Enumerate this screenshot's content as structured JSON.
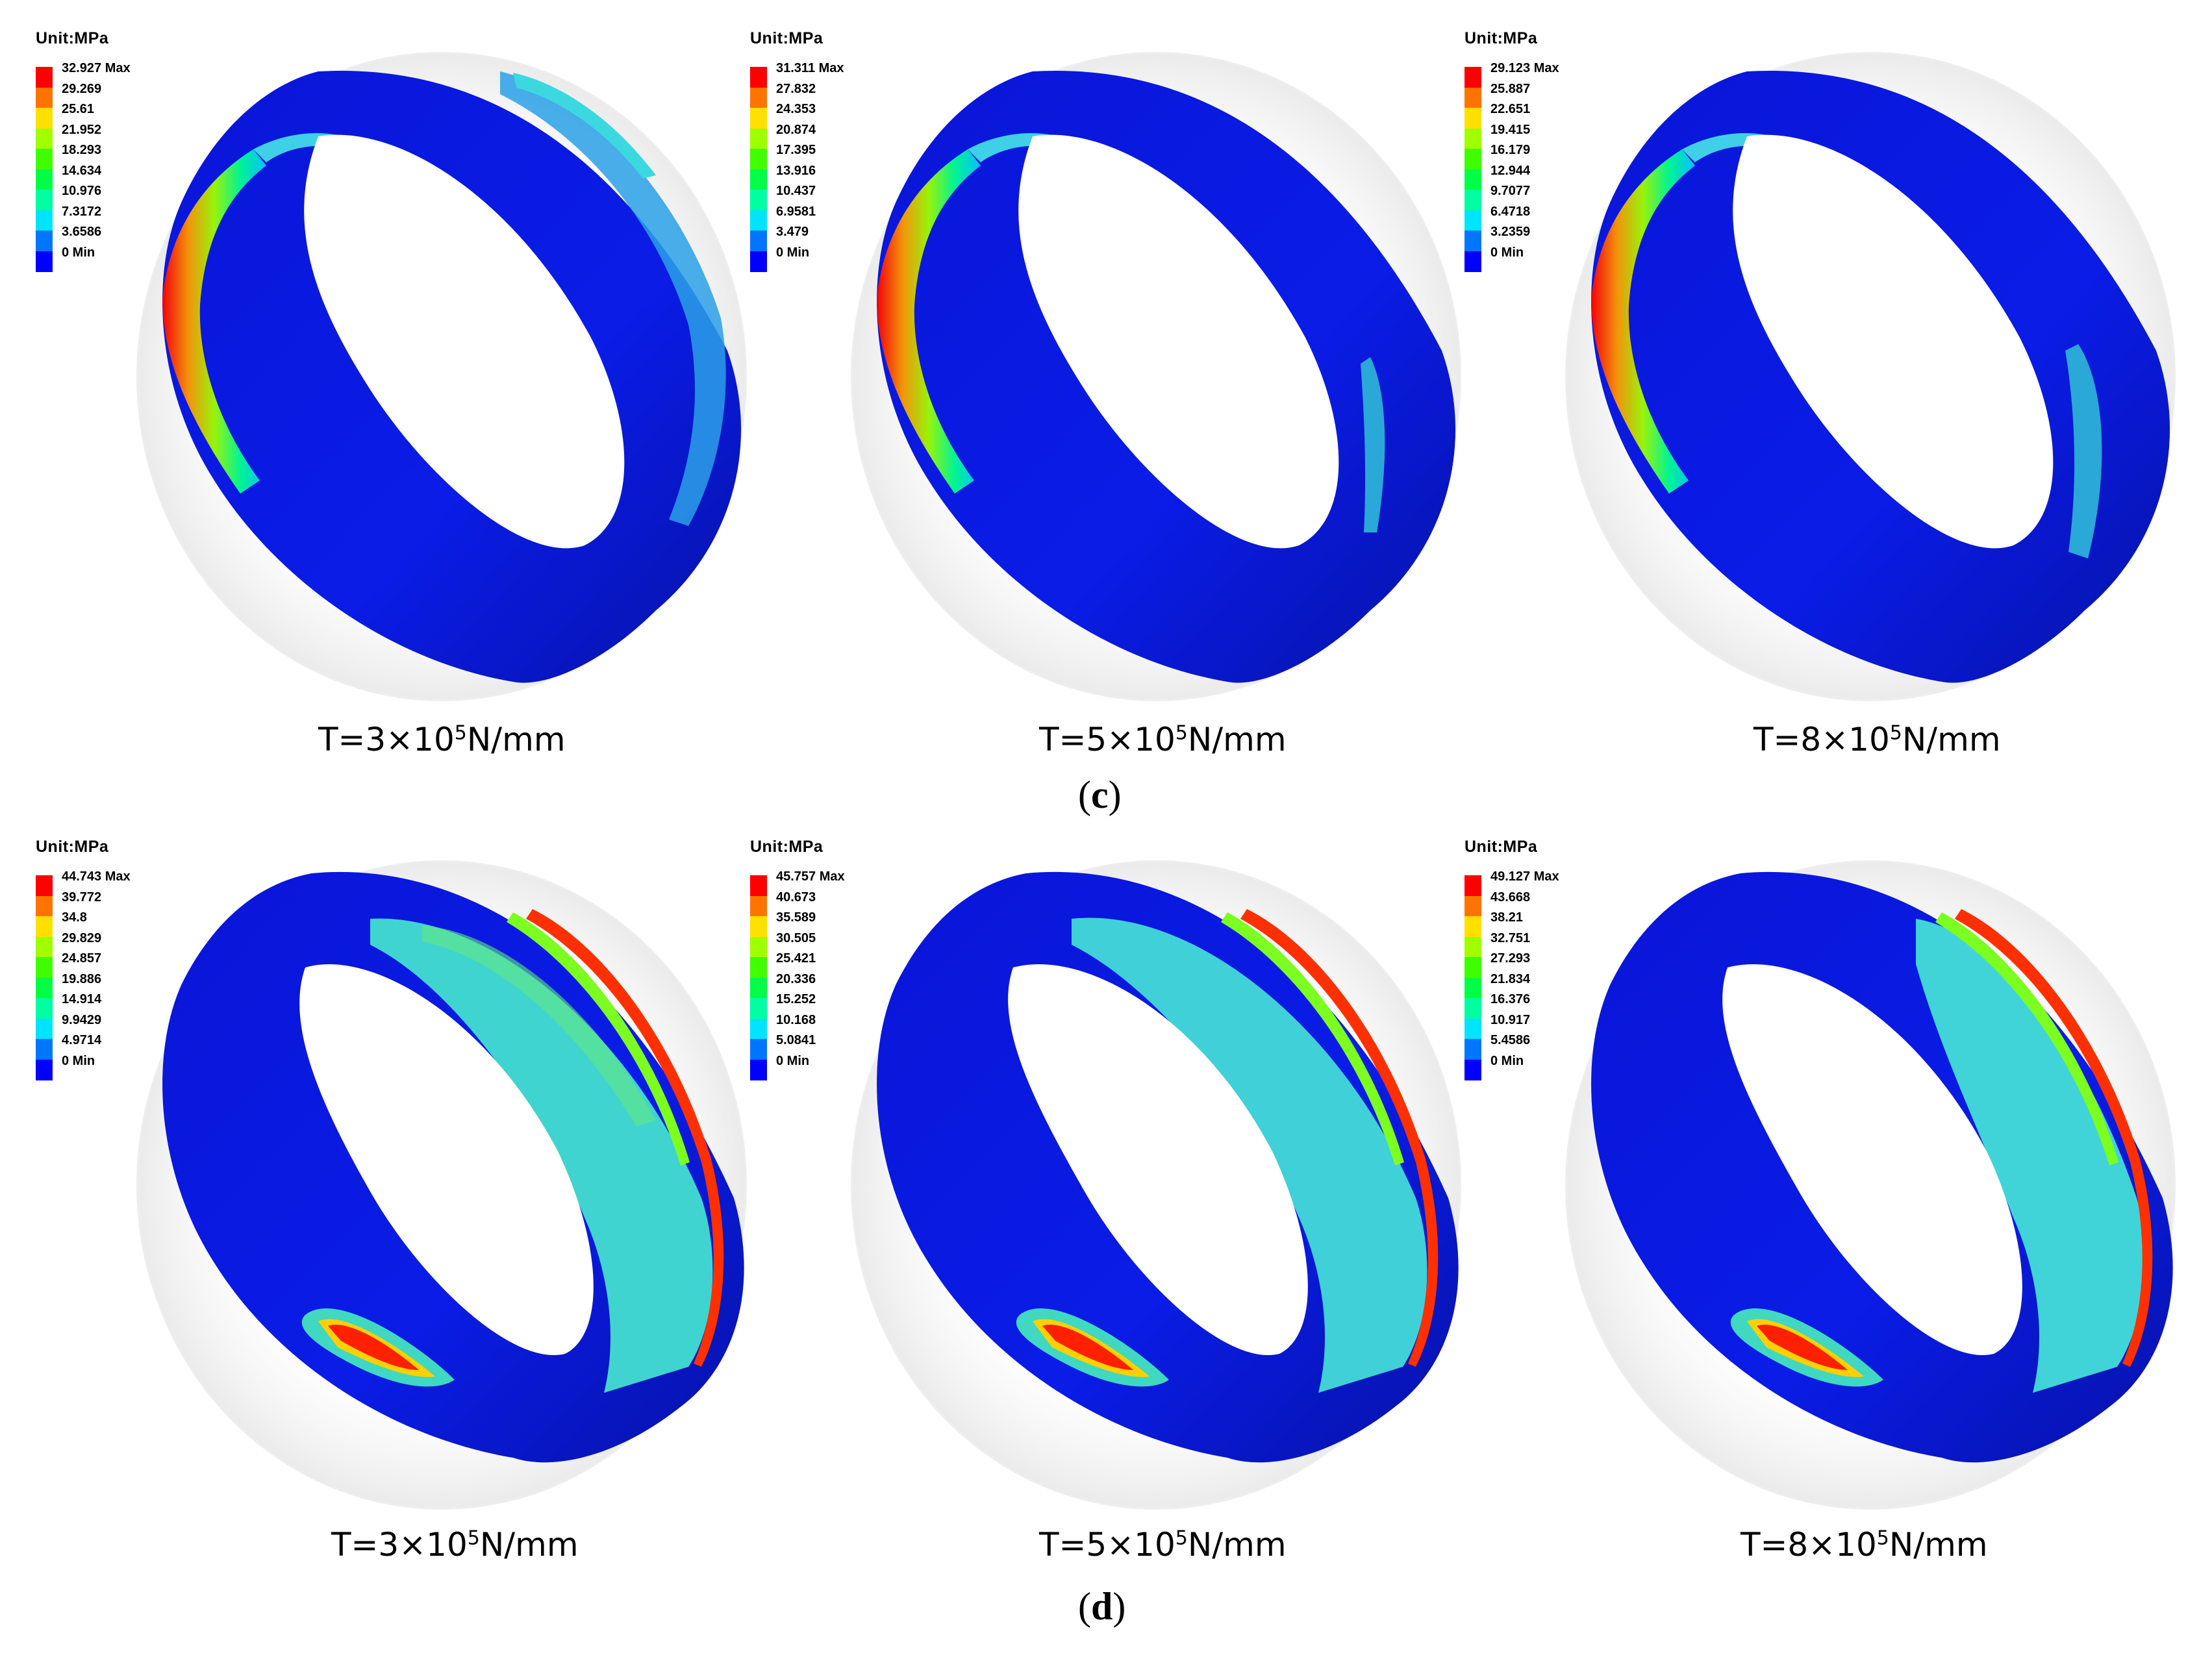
{
  "legend_colors": [
    "#0000ff",
    "#0076ff",
    "#00e4ff",
    "#00ffa0",
    "#00ff44",
    "#40ff00",
    "#a0ff00",
    "#ffe000",
    "#ff7400",
    "#ff0000"
  ],
  "unit_label": "Unit:MPa",
  "sections": [
    {
      "label": "c",
      "panels": [
        {
          "caption_pre": "T=3×10",
          "caption_sup": "5",
          "caption_post": "N/mm",
          "legend": [
            "32.927 Max",
            "29.269",
            "25.61",
            "21.952",
            "18.293",
            "14.634",
            "10.976",
            "7.3172",
            "3.6586",
            "0 Min"
          ]
        },
        {
          "caption_pre": "T=5×10",
          "caption_sup": "5",
          "caption_post": "N/mm",
          "legend": [
            "31.311 Max",
            "27.832",
            "24.353",
            "20.874",
            "17.395",
            "13.916",
            "10.437",
            "6.9581",
            "3.479",
            "0 Min"
          ]
        },
        {
          "caption_pre": "T=8×10",
          "caption_sup": "5",
          "caption_post": "N/mm",
          "legend": [
            "29.123 Max",
            "25.887",
            "22.651",
            "19.415",
            "16.179",
            "12.944",
            "9.7077",
            "6.4718",
            "3.2359",
            "0 Min"
          ]
        }
      ]
    },
    {
      "label": "d",
      "panels": [
        {
          "caption_pre": "T=3×10",
          "caption_sup": "5",
          "caption_post": "N/mm",
          "legend": [
            "44.743 Max",
            "39.772",
            "34.8",
            "29.829",
            "24.857",
            "19.886",
            "14.914",
            "9.9429",
            "4.9714",
            "0 Min"
          ]
        },
        {
          "caption_pre": "T=5×10",
          "caption_sup": "5",
          "caption_post": "N/mm",
          "legend": [
            "45.757 Max",
            "40.673",
            "35.589",
            "30.505",
            "25.421",
            "20.336",
            "15.252",
            "10.168",
            "5.0841",
            "0 Min"
          ]
        },
        {
          "caption_pre": "T=8×10",
          "caption_sup": "5",
          "caption_post": "N/mm",
          "legend": [
            "49.127 Max",
            "43.668",
            "38.21",
            "32.751",
            "27.293",
            "21.834",
            "16.376",
            "10.917",
            "5.4586",
            "0 Min"
          ]
        }
      ]
    }
  ]
}
